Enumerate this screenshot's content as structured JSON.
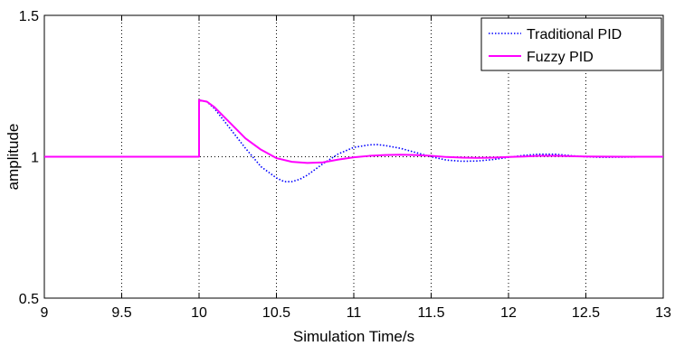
{
  "chart_data": {
    "type": "line",
    "title": "",
    "xlabel": "Simulation Time/s",
    "ylabel": "amplitude",
    "xlim": [
      9,
      13
    ],
    "ylim": [
      0.5,
      1.5
    ],
    "x_ticks": [
      "9",
      "9.5",
      "10",
      "10.5",
      "11",
      "11.5",
      "12",
      "12.5",
      "13"
    ],
    "y_ticks": [
      "0.5",
      "1",
      "1.5"
    ],
    "grid": true,
    "legend_position": "top-right",
    "series": [
      {
        "name": "Traditional PID",
        "color": "#0000ff",
        "style": "dotted",
        "x": [
          9,
          9.5,
          10,
          10,
          10.05,
          10.1,
          10.2,
          10.3,
          10.4,
          10.5,
          10.55,
          10.6,
          10.65,
          10.7,
          10.8,
          10.9,
          11.0,
          11.1,
          11.15,
          11.2,
          11.3,
          11.4,
          11.5,
          11.6,
          11.7,
          11.8,
          11.9,
          12.0,
          12.1,
          12.2,
          12.3,
          12.4,
          12.5,
          12.6,
          12.8,
          13
        ],
        "y": [
          1.0,
          1.0,
          1.0,
          1.2,
          1.195,
          1.17,
          1.1,
          1.03,
          0.965,
          0.925,
          0.912,
          0.912,
          0.92,
          0.935,
          0.975,
          1.01,
          1.033,
          1.042,
          1.043,
          1.04,
          1.03,
          1.015,
          1.0,
          0.988,
          0.984,
          0.985,
          0.99,
          0.998,
          1.005,
          1.009,
          1.009,
          1.004,
          1.0,
          0.998,
          0.999,
          1.0
        ]
      },
      {
        "name": "Fuzzy PID",
        "color": "#ff00ff",
        "style": "solid",
        "x": [
          9,
          9.5,
          10,
          10,
          10.05,
          10.1,
          10.2,
          10.3,
          10.4,
          10.5,
          10.6,
          10.7,
          10.8,
          10.9,
          11.0,
          11.1,
          11.2,
          11.3,
          11.4,
          11.5,
          11.6,
          11.7,
          11.8,
          11.9,
          12.0,
          12.1,
          12.2,
          12.3,
          12.4,
          12.5,
          12.75,
          13
        ],
        "y": [
          1.0,
          1.0,
          1.0,
          1.2,
          1.195,
          1.175,
          1.12,
          1.065,
          1.025,
          0.995,
          0.982,
          0.978,
          0.98,
          0.99,
          0.998,
          1.003,
          1.006,
          1.007,
          1.006,
          1.003,
          0.999,
          0.997,
          0.996,
          0.997,
          0.999,
          1.001,
          1.003,
          1.003,
          1.002,
          1.001,
          1.0,
          1.0
        ]
      }
    ]
  }
}
